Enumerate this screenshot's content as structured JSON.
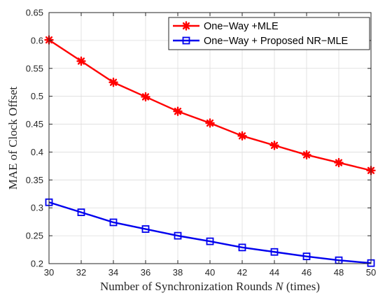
{
  "chart_data": {
    "type": "line",
    "title": "",
    "xlabel": "Number of Synchronization Rounds",
    "xlabel_symbol": "N",
    "xlabel_suffix": "(times)",
    "ylabel": "MAE of Clock Offset",
    "xlim": [
      30,
      50
    ],
    "ylim": [
      0.2,
      0.65
    ],
    "xticks": [
      30,
      32,
      34,
      36,
      38,
      40,
      42,
      44,
      46,
      48,
      50
    ],
    "yticks": [
      0.2,
      0.25,
      0.3,
      0.35,
      0.4,
      0.45,
      0.5,
      0.55,
      0.6,
      0.65
    ],
    "ytick_labels": [
      "0.2",
      "0.25",
      "0.3",
      "0.35",
      "0.4",
      "0.45",
      "0.5",
      "0.55",
      "0.6",
      "0.65"
    ],
    "grid": true,
    "legend_position": "top-right",
    "x": [
      30,
      32,
      34,
      36,
      38,
      40,
      42,
      44,
      46,
      48,
      50
    ],
    "series": [
      {
        "name": "One−Way +MLE",
        "color": "#ff0000",
        "marker": "asterisk",
        "values": [
          0.601,
          0.563,
          0.525,
          0.499,
          0.473,
          0.452,
          0.429,
          0.412,
          0.395,
          0.381,
          0.367
        ]
      },
      {
        "name": "One−Way + Proposed NR−MLE",
        "color": "#0000ee",
        "marker": "square",
        "values": [
          0.31,
          0.292,
          0.274,
          0.262,
          0.25,
          0.24,
          0.229,
          0.221,
          0.213,
          0.206,
          0.201
        ]
      }
    ]
  }
}
